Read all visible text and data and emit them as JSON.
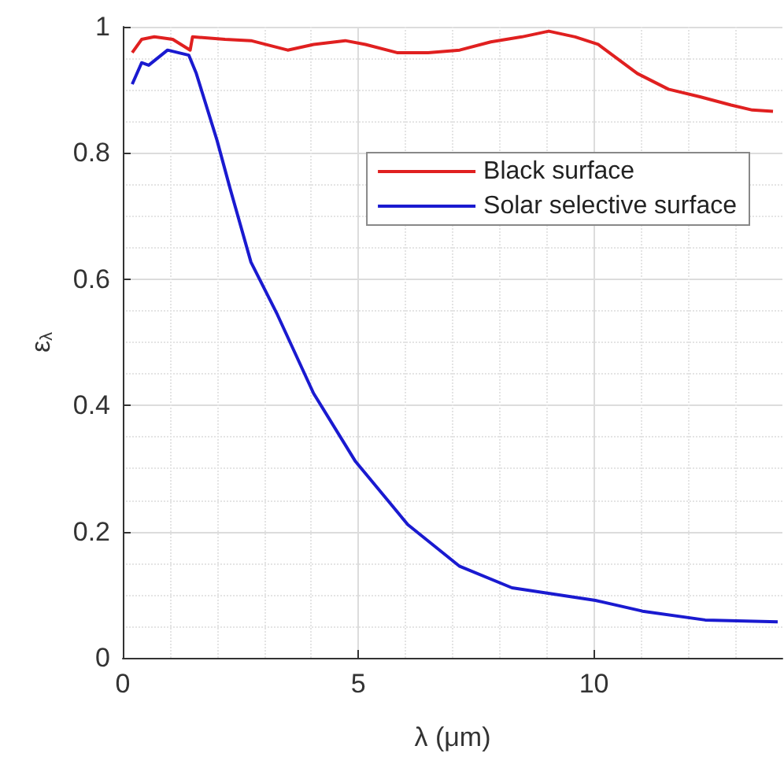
{
  "chart_data": {
    "type": "line",
    "xlabel": "λ (μm)",
    "ylabel": "ε$_{λ}$",
    "xlim": [
      0,
      14
    ],
    "xticks": [
      0,
      5,
      10
    ],
    "ylim": [
      0,
      1
    ],
    "yticks": [
      0,
      {
        "value": 0.2,
        "label": "0.2"
      },
      {
        "value": 0.4,
        "label": "0.4"
      },
      {
        "value": 0.6,
        "label": "0.6"
      },
      {
        "value": 0.8,
        "label": "0.8"
      },
      1
    ],
    "grid": true,
    "legend": "top right",
    "marker": "none",
    "line_style": "solid",
    "series": [
      {
        "name": "Black surface",
        "color": "#e02020",
        "x": [
          0.2,
          0.4,
          0.67,
          1.06,
          1.43,
          1.48,
          2.17,
          2.72,
          3.5,
          4.05,
          4.72,
          5.15,
          5.82,
          6.48,
          7.15,
          7.81,
          8.47,
          9.04,
          9.6,
          10.09,
          10.47,
          10.92,
          11.58,
          12.25,
          12.91,
          13.36,
          13.8
        ],
        "values": [
          0.959,
          0.98,
          0.984,
          0.98,
          0.963,
          0.984,
          0.98,
          0.978,
          0.963,
          0.972,
          0.978,
          0.972,
          0.959,
          0.959,
          0.963,
          0.976,
          0.984,
          0.993,
          0.984,
          0.972,
          0.951,
          0.926,
          0.901,
          0.889,
          0.876,
          0.868,
          0.866
        ]
      },
      {
        "name": "Solar selective surface",
        "color": "#1a1ad0",
        "x": [
          0.2,
          0.4,
          0.55,
          0.95,
          1.4,
          1.56,
          2.0,
          2.28,
          2.72,
          3.28,
          4.05,
          4.94,
          6.05,
          7.15,
          8.26,
          10.03,
          11.03,
          12.36,
          13.9
        ],
        "values": [
          0.909,
          0.943,
          0.939,
          0.963,
          0.955,
          0.926,
          0.82,
          0.743,
          0.627,
          0.544,
          0.419,
          0.311,
          0.211,
          0.145,
          0.111,
          0.091,
          0.074,
          0.06,
          0.057
        ]
      }
    ]
  }
}
